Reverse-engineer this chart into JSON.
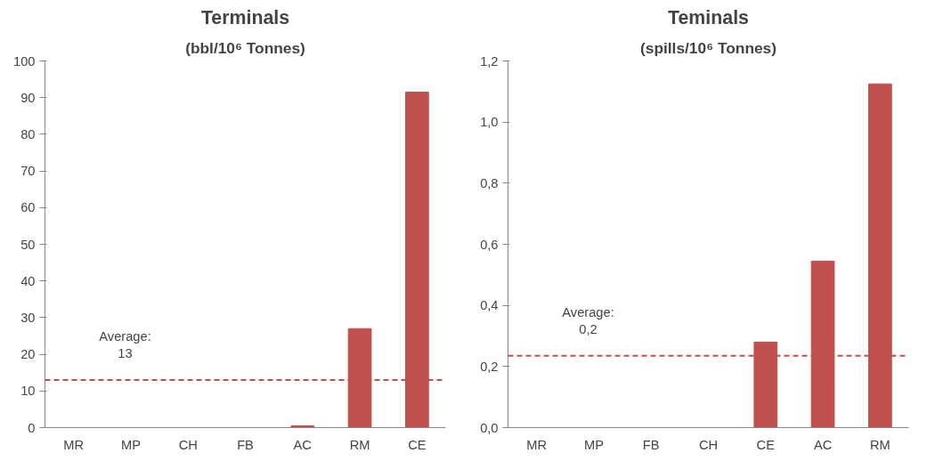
{
  "chart_data": [
    {
      "type": "bar",
      "title": "Terminals",
      "subtitle": "(bbl/10⁶ Tonnes)",
      "categories": [
        "MR",
        "MP",
        "CH",
        "FB",
        "AC",
        "RM",
        "CE"
      ],
      "values": [
        0,
        0,
        0,
        0,
        0.5,
        27,
        91.5
      ],
      "color": "#c0504d",
      "ylim": [
        0,
        100
      ],
      "yticks": [
        0,
        10,
        20,
        30,
        40,
        50,
        60,
        70,
        80,
        90,
        100
      ],
      "grid": false,
      "ref_lines": [
        {
          "axis": "y",
          "value": 13,
          "label": "Average:\n13",
          "color": "#c0504d",
          "line_style": "dashed"
        }
      ]
    },
    {
      "type": "bar",
      "title": "Teminals",
      "subtitle": "(spills/10⁶ Tonnes)",
      "categories": [
        "MR",
        "MP",
        "FB",
        "CH",
        "CE",
        "AC",
        "RM"
      ],
      "values": [
        0,
        0,
        0,
        0,
        0.28,
        0.545,
        1.125
      ],
      "color": "#c0504d",
      "ylim": [
        0,
        1.2
      ],
      "yticks": [
        {
          "value": 0,
          "label": "0,0"
        },
        {
          "value": 0.2,
          "label": "0,2"
        },
        {
          "value": 0.4,
          "label": "0,4"
        },
        {
          "value": 0.6,
          "label": "0,6"
        },
        {
          "value": 0.8,
          "label": "0,8"
        },
        {
          "value": 1.0,
          "label": "1,0"
        },
        {
          "value": 1.2,
          "label": "1,2"
        }
      ],
      "grid": false,
      "ref_lines": [
        {
          "axis": "y",
          "value": 0.235,
          "label": "Average:\n0,2",
          "color": "#c0504d",
          "line_style": "dashed"
        }
      ]
    }
  ]
}
